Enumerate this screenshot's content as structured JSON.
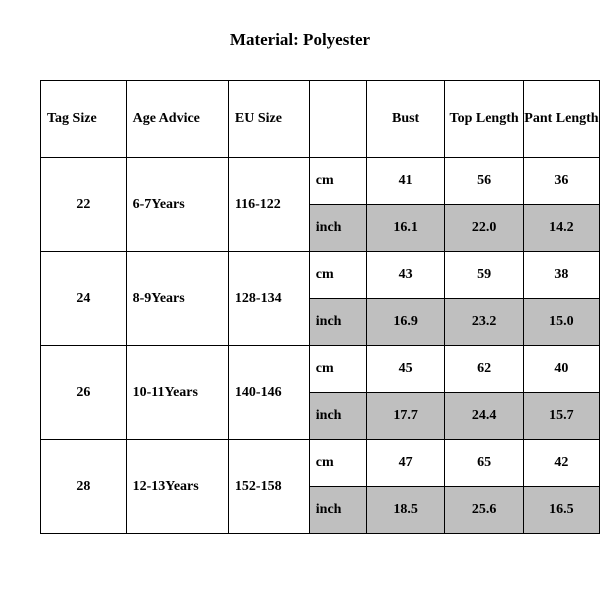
{
  "title": "Material: Polyester",
  "columns": [
    "Tag Size",
    "Age Advice",
    "EU Size",
    "",
    "Bust",
    "Top Length",
    "Pant Length"
  ],
  "unit_labels": {
    "cm": "cm",
    "inch": "inch"
  },
  "rows": [
    {
      "tag_size": "22",
      "age_advice": "6-7Years",
      "eu_size": "116-122",
      "cm": {
        "bust": "41",
        "top_length": "56",
        "pant_length": "36"
      },
      "inch": {
        "bust": "16.1",
        "top_length": "22.0",
        "pant_length": "14.2"
      }
    },
    {
      "tag_size": "24",
      "age_advice": "8-9Years",
      "eu_size": "128-134",
      "cm": {
        "bust": "43",
        "top_length": "59",
        "pant_length": "38"
      },
      "inch": {
        "bust": "16.9",
        "top_length": "23.2",
        "pant_length": "15.0"
      }
    },
    {
      "tag_size": "26",
      "age_advice": "10-11Years",
      "eu_size": "140-146",
      "cm": {
        "bust": "45",
        "top_length": "62",
        "pant_length": "40"
      },
      "inch": {
        "bust": "17.7",
        "top_length": "24.4",
        "pant_length": "15.7"
      }
    },
    {
      "tag_size": "28",
      "age_advice": "12-13Years",
      "eu_size": "152-158",
      "cm": {
        "bust": "47",
        "top_length": "65",
        "pant_length": "42"
      },
      "inch": {
        "bust": "18.5",
        "top_length": "25.6",
        "pant_length": "16.5"
      }
    }
  ],
  "style": {
    "background_color": "#ffffff",
    "text_color": "#000000",
    "shade_color": "#bfbfbf",
    "border_color": "#000000",
    "title_fontsize": 17,
    "cell_fontsize": 14,
    "font_family": "Times New Roman"
  }
}
